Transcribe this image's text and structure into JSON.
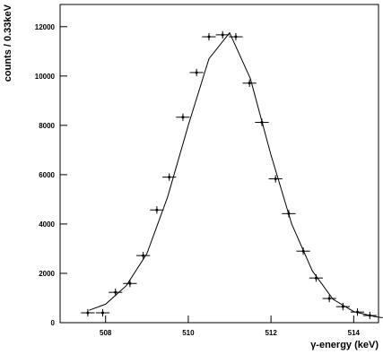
{
  "chart_data": {
    "type": "errorbar",
    "x_label": "γ-energy (keV)",
    "y_label": "counts / 0.33keV",
    "x": [
      507.57,
      507.93,
      508.24,
      508.59,
      508.91,
      509.24,
      509.54,
      509.87,
      510.2,
      510.5,
      510.83,
      511.15,
      511.48,
      511.78,
      512.11,
      512.43,
      512.78,
      513.09,
      513.41,
      513.74,
      514.09,
      514.39
    ],
    "values": [
      400,
      400,
      1230,
      1590,
      2720,
      4570,
      5900,
      8330,
      10140,
      11590,
      11670,
      11590,
      9710,
      8120,
      5830,
      4420,
      2900,
      1810,
      980,
      650,
      430,
      290
    ],
    "yerr": [
      150,
      150,
      150,
      150,
      150,
      150,
      150,
      150,
      150,
      150,
      150,
      150,
      150,
      150,
      150,
      150,
      150,
      150,
      150,
      150,
      150,
      150
    ],
    "xerr": 0.165,
    "color": "#000000",
    "fit": {
      "x": [
        507.6,
        508.0,
        508.5,
        509.0,
        509.5,
        510.0,
        510.5,
        511.0,
        511.5,
        512.0,
        512.5,
        513.0,
        513.5,
        514.0,
        514.5,
        514.7
      ],
      "values": [
        500,
        750,
        1500,
        2800,
        5100,
        8000,
        10700,
        11750,
        9900,
        6800,
        4000,
        2100,
        950,
        450,
        250,
        200
      ]
    },
    "xlim": [
      506.9,
      514.6
    ],
    "ylim": [
      0,
      12900
    ],
    "xticks": [
      508,
      510,
      512,
      514
    ],
    "yticks": [
      0,
      2000,
      4000,
      6000,
      8000,
      10000,
      12000
    ]
  }
}
